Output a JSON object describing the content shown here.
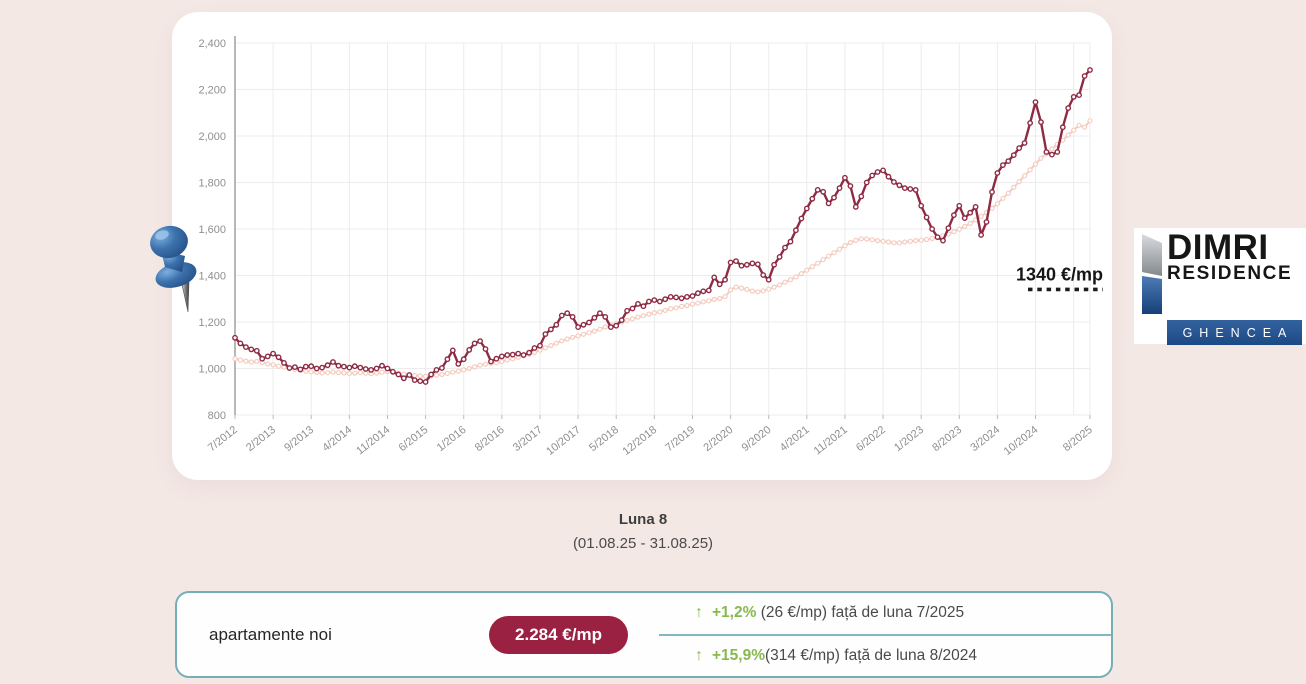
{
  "colors": {
    "page_background": "#f4e8e5",
    "series_dark_red": "#8e2b44",
    "series_pink": "#f4cdc1",
    "badge_background": "#9b2142",
    "positive_green": "#87b94f",
    "card_border_teal": "#74aeb9",
    "logo_banner_blue": "#1c4a87"
  },
  "chart_data": {
    "type": "line",
    "title": "",
    "frequency": "monthly",
    "x_range": [
      "7/2012",
      "8/2025"
    ],
    "ylim": [
      800,
      2400
    ],
    "y_tick_step": 200,
    "y_tick_labels": [
      "800",
      "1,000",
      "1,200",
      "1,400",
      "1,600",
      "1,800",
      "2,000",
      "2,200",
      "2,400"
    ],
    "x_tick_indices": [
      0,
      7,
      14,
      21,
      28,
      35,
      42,
      49,
      56,
      63,
      70,
      77,
      84,
      91,
      98,
      105,
      112,
      119,
      126,
      133,
      140,
      147,
      157
    ],
    "x_tick_labels": [
      "7/2012",
      "2/2013",
      "9/2013",
      "4/2014",
      "11/2014",
      "6/2015",
      "1/2016",
      "8/2016",
      "3/2017",
      "10/2017",
      "5/2018",
      "12/2018",
      "7/2019",
      "2/2020",
      "9/2020",
      "4/2021",
      "11/2021",
      "6/2022",
      "1/2023",
      "8/2023",
      "3/2024",
      "10/2024",
      "8/2025"
    ],
    "grid": true,
    "legend": "none",
    "annotation": {
      "text": "1340 €/mp",
      "value": 1340
    },
    "series": [
      {
        "name": "apartamente noi",
        "color": "#8e2b44",
        "marker": "open-circle",
        "values": [
          1132,
          1108,
          1092,
          1082,
          1076,
          1042,
          1052,
          1064,
          1048,
          1024,
          1002,
          1006,
          996,
          1008,
          1010,
          1000,
          1004,
          1014,
          1028,
          1012,
          1008,
          1004,
          1010,
          1004,
          998,
          994,
          1000,
          1012,
          1000,
          986,
          974,
          958,
          972,
          950,
          946,
          942,
          974,
          994,
          1002,
          1040,
          1078,
          1020,
          1040,
          1080,
          1108,
          1118,
          1084,
          1030,
          1042,
          1052,
          1058,
          1060,
          1064,
          1058,
          1068,
          1088,
          1098,
          1148,
          1168,
          1188,
          1228,
          1238,
          1222,
          1178,
          1188,
          1198,
          1218,
          1238,
          1222,
          1178,
          1184,
          1208,
          1248,
          1258,
          1278,
          1268,
          1288,
          1294,
          1288,
          1298,
          1308,
          1306,
          1302,
          1308,
          1312,
          1324,
          1332,
          1336,
          1392,
          1362,
          1382,
          1456,
          1462,
          1442,
          1446,
          1452,
          1448,
          1402,
          1382,
          1446,
          1480,
          1520,
          1546,
          1595,
          1645,
          1688,
          1730,
          1768,
          1760,
          1710,
          1735,
          1776,
          1820,
          1785,
          1695,
          1740,
          1800,
          1830,
          1845,
          1852,
          1825,
          1802,
          1788,
          1776,
          1772,
          1768,
          1700,
          1650,
          1600,
          1565,
          1550,
          1604,
          1660,
          1700,
          1647,
          1670,
          1695,
          1574,
          1630,
          1759,
          1841,
          1875,
          1892,
          1918,
          1948,
          1970,
          2056,
          2146,
          2060,
          1931,
          1920,
          1931,
          2038,
          2120,
          2168,
          2176,
          2258,
          2284
        ]
      },
      {
        "name": "unlabeled-pink-series",
        "color": "#f4cdc1",
        "marker": "open-circle",
        "values": [
          1042,
          1036,
          1032,
          1028,
          1030,
          1026,
          1020,
          1016,
          1010,
          1006,
          1000,
          996,
          992,
          988,
          986,
          983,
          981,
          982,
          985,
          983,
          981,
          979,
          980,
          982,
          980,
          978,
          980,
          984,
          987,
          985,
          980,
          976,
          972,
          970,
          968,
          966,
          968,
          971,
          974,
          979,
          984,
          989,
          994,
          1000,
          1007,
          1014,
          1019,
          1022,
          1025,
          1030,
          1037,
          1042,
          1048,
          1054,
          1061,
          1069,
          1079,
          1089,
          1099,
          1109,
          1119,
          1127,
          1134,
          1140,
          1147,
          1154,
          1161,
          1169,
          1179,
          1187,
          1194,
          1200,
          1207,
          1214,
          1221,
          1227,
          1234,
          1239,
          1244,
          1250,
          1257,
          1261,
          1267,
          1271,
          1277,
          1281,
          1287,
          1291,
          1297,
          1301,
          1309,
          1338,
          1350,
          1346,
          1340,
          1333,
          1330,
          1334,
          1341,
          1350,
          1360,
          1371,
          1382,
          1394,
          1408,
          1423,
          1438,
          1453,
          1468,
          1483,
          1498,
          1513,
          1528,
          1542,
          1551,
          1558,
          1557,
          1554,
          1550,
          1547,
          1544,
          1541,
          1540,
          1544,
          1547,
          1550,
          1552,
          1555,
          1559,
          1564,
          1571,
          1579,
          1589,
          1599,
          1611,
          1624,
          1639,
          1654,
          1671,
          1689,
          1709,
          1732,
          1754,
          1779,
          1804,
          1829,
          1854,
          1879,
          1904,
          1924,
          1944,
          1964,
          1982,
          2004,
          2025,
          2046,
          2038,
          2066
        ]
      }
    ]
  },
  "period": {
    "line1": "Luna 8",
    "line2": "(01.08.25 - 31.08.25)"
  },
  "summary_card": {
    "label": "apartamente noi",
    "badge_value": "2.284 €/mp",
    "rows": [
      {
        "arrow": "↑",
        "pct": "+1,2%",
        "rest": " (26 €/mp) față de luna 7/2025"
      },
      {
        "arrow": "↑",
        "pct": "+15,9%",
        "rest": "(314 €/mp) față de luna 8/2024"
      }
    ]
  },
  "logo": {
    "line1": "DIMRI",
    "line2": "RESIDENCE",
    "banner": "GHENCEA"
  }
}
